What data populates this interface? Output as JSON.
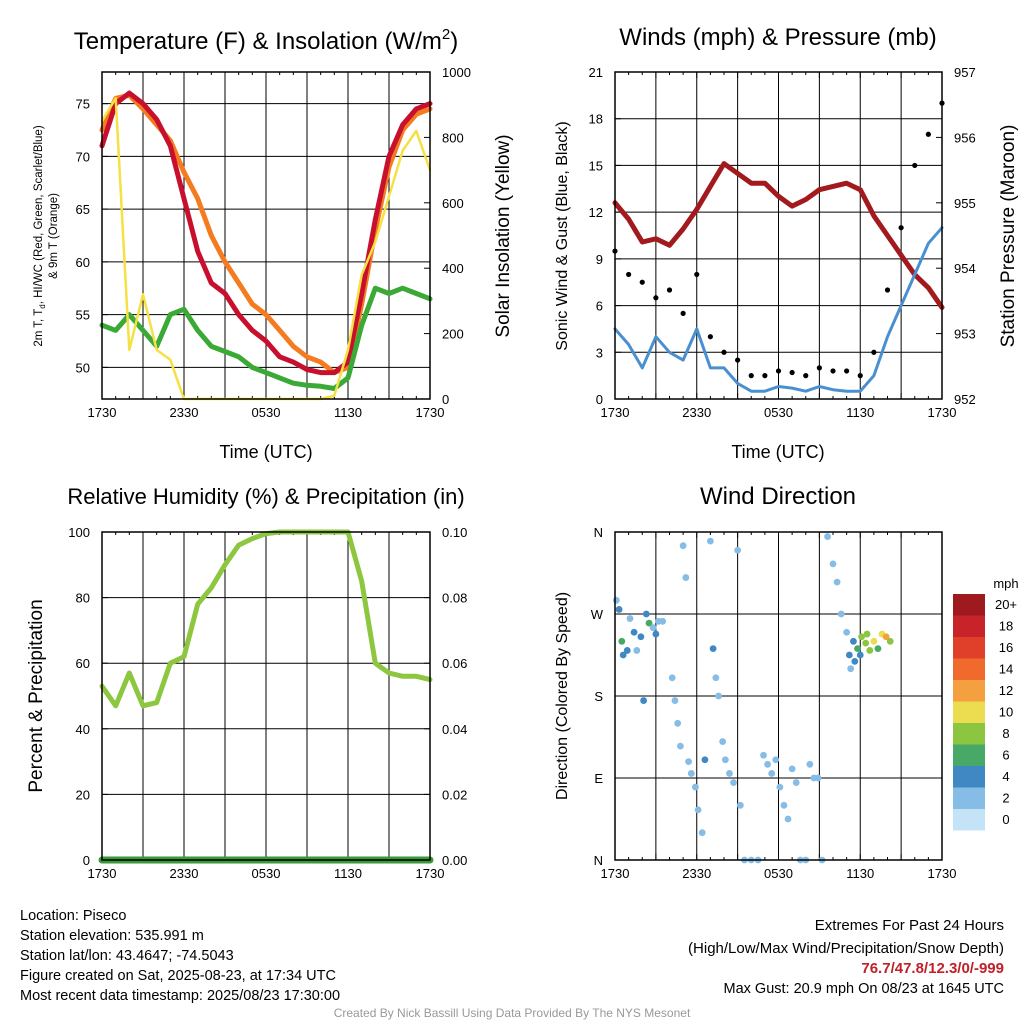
{
  "x_ticks": [
    "1730",
    "2330",
    "0530",
    "1130",
    "1730"
  ],
  "chart_data": [
    {
      "type": "line",
      "title": "Temperature (F) & Insolation (W/m2)",
      "title_main": "Temperature (F) & Insolation (W/m",
      "title_sup": "2",
      "title_close": ")",
      "xlabel": "Time (UTC)",
      "ylabel_left": "2m T, T, HI/WC (Red, Green, Scarlet/Blue)",
      "ylabel_left_prefix": "2m T, T",
      "ylabel_left_sub": "d",
      "ylabel_left_rest": ", HI/WC (Red, Green, Scarlet/Blue)",
      "ylabel_left_line2": "& 9m T (Orange)",
      "ylabel_right": "Solar Insolation (Yellow)",
      "ylim_left": [
        47,
        78
      ],
      "ylim_right": [
        0,
        1000
      ],
      "yticks_left": [
        50,
        55,
        60,
        65,
        70,
        75
      ],
      "yticks_right": [
        0,
        200,
        400,
        600,
        800,
        1000
      ],
      "x_hours": [
        0,
        1,
        2,
        3,
        4,
        5,
        6,
        7,
        8,
        9,
        10,
        11,
        12,
        13,
        14,
        15,
        16,
        17,
        18,
        19,
        20,
        21,
        22,
        23,
        24
      ],
      "series": [
        {
          "name": "9m T",
          "color": "#f47b20",
          "axis": "left",
          "width": 5,
          "values": [
            72.5,
            75.5,
            75.8,
            74.5,
            73,
            71.5,
            68.5,
            66,
            62.5,
            60,
            58,
            56,
            55,
            53.5,
            52,
            51,
            50.5,
            49.5,
            50,
            56,
            63,
            69,
            72.5,
            74,
            74.5
          ]
        },
        {
          "name": "2m T",
          "color": "#c8102e",
          "axis": "left",
          "width": 5,
          "values": [
            71,
            75,
            76,
            75,
            73.5,
            71,
            66,
            61,
            58,
            57,
            55,
            53.5,
            52.5,
            51,
            50.5,
            49.8,
            49.5,
            49.5,
            50.5,
            57,
            64,
            70,
            73,
            74.5,
            75
          ]
        },
        {
          "name": "Td",
          "color": "#3aa935",
          "axis": "left",
          "width": 5,
          "values": [
            54,
            53.5,
            55,
            53.5,
            52,
            55,
            55.5,
            53.5,
            52,
            51.5,
            51,
            50,
            49.5,
            49,
            48.5,
            48.3,
            48.2,
            48,
            49,
            54,
            57.5,
            57,
            57.5,
            57,
            56.5
          ]
        },
        {
          "name": "Solar Insolation",
          "color": "#f5e143",
          "axis": "right",
          "width": 2.5,
          "values": [
            850,
            920,
            150,
            320,
            150,
            120,
            0,
            0,
            0,
            0,
            0,
            0,
            0,
            0,
            0,
            0,
            0,
            10,
            150,
            380,
            480,
            620,
            760,
            820,
            700
          ]
        }
      ]
    },
    {
      "type": "line",
      "title": "Winds (mph) & Pressure (mb)",
      "xlabel": "Time (UTC)",
      "ylabel_left": "Sonic Wind & Gust (Blue, Black)",
      "ylabel_right": "Station Pressure (Maroon)",
      "ylim_left": [
        0,
        21
      ],
      "ylim_right": [
        952,
        957
      ],
      "yticks_left": [
        0,
        3,
        6,
        9,
        12,
        15,
        18,
        21
      ],
      "yticks_right": [
        952,
        953,
        954,
        955,
        956,
        957
      ],
      "x_hours": [
        0,
        1,
        2,
        3,
        4,
        5,
        6,
        7,
        8,
        9,
        10,
        11,
        12,
        13,
        14,
        15,
        16,
        17,
        18,
        19,
        20,
        21,
        22,
        23,
        24
      ],
      "series": [
        {
          "name": "Station Pressure",
          "color": "#a31a1e",
          "axis": "right",
          "width": 5,
          "values": [
            955.0,
            954.75,
            954.4,
            954.45,
            954.35,
            954.6,
            954.9,
            955.25,
            955.6,
            955.45,
            955.3,
            955.3,
            955.1,
            954.95,
            955.05,
            955.2,
            955.25,
            955.3,
            955.2,
            954.8,
            954.5,
            954.2,
            953.9,
            953.7,
            953.4
          ]
        },
        {
          "name": "Sonic Wind",
          "color": "#4a90d0",
          "axis": "left",
          "width": 3,
          "values": [
            4.5,
            3.5,
            2,
            4,
            3,
            2.5,
            4.5,
            2,
            2,
            1,
            0.5,
            0.5,
            0.8,
            0.7,
            0.5,
            0.8,
            0.6,
            0.5,
            0.5,
            1.5,
            4,
            6,
            8,
            10,
            11
          ]
        },
        {
          "name": "Gust",
          "color": "#000000",
          "axis": "left",
          "width": 0,
          "values": [
            9.5,
            8,
            7.5,
            6.5,
            7,
            5.5,
            8,
            4,
            3,
            2.5,
            1.5,
            1.5,
            1.8,
            1.7,
            1.5,
            2,
            1.8,
            1.8,
            1.5,
            3,
            7,
            11,
            15,
            17,
            19
          ]
        }
      ]
    },
    {
      "type": "line",
      "title": "Relative Humidity (%) & Precipitation (in)",
      "ylabel_left": "Percent & Precipitation",
      "ylim_left": [
        0,
        100
      ],
      "ylim_right": [
        0,
        0.1
      ],
      "yticks_left": [
        0,
        20,
        40,
        60,
        80,
        100
      ],
      "yticks_right": [
        "0.00",
        "0.02",
        "0.04",
        "0.06",
        "0.08",
        "0.10"
      ],
      "x_hours": [
        0,
        1,
        2,
        3,
        4,
        5,
        6,
        7,
        8,
        9,
        10,
        11,
        12,
        13,
        14,
        15,
        16,
        17,
        18,
        19,
        20,
        21,
        22,
        23,
        24
      ],
      "series": [
        {
          "name": "Relative Humidity",
          "color": "#8dc63f",
          "axis": "left",
          "width": 5,
          "values": [
            53,
            47,
            57,
            47,
            48,
            60,
            62,
            78,
            83,
            90,
            96,
            98,
            99.5,
            100,
            100,
            100,
            100,
            100,
            100,
            85,
            60,
            57,
            56,
            56,
            55
          ]
        },
        {
          "name": "Precipitation",
          "color": "#3a9a3a",
          "axis": "right",
          "width": 7,
          "values": [
            0,
            0,
            0,
            0,
            0,
            0,
            0,
            0,
            0,
            0,
            0,
            0,
            0,
            0,
            0,
            0,
            0,
            0,
            0,
            0,
            0,
            0,
            0,
            0,
            0
          ]
        }
      ]
    },
    {
      "type": "scatter",
      "title": "Wind Direction",
      "ylabel_left": "Direction (Colored By Speed)",
      "yticks_left": [
        "N",
        "E",
        "S",
        "W",
        "N"
      ],
      "ylim_left": [
        0,
        360
      ],
      "colorbar": {
        "title": "mph",
        "labels": [
          "20+",
          "18",
          "16",
          "14",
          "12",
          "10",
          "8",
          "6",
          "4",
          "2",
          "0"
        ],
        "colors": [
          "#9e1a1e",
          "#c8222a",
          "#e0402a",
          "#f06a2e",
          "#f5a040",
          "#ecdc50",
          "#8cc640",
          "#48a868",
          "#3f88c4",
          "#86bde6",
          "#c5e3f7"
        ]
      },
      "points": [
        [
          0.1,
          285,
          3
        ],
        [
          0.3,
          275,
          4
        ],
        [
          0.5,
          240,
          6
        ],
        [
          0.6,
          225,
          5
        ],
        [
          0.9,
          230,
          4
        ],
        [
          1.1,
          265,
          3
        ],
        [
          1.4,
          250,
          4
        ],
        [
          1.6,
          230,
          3
        ],
        [
          1.9,
          245,
          4
        ],
        [
          2.1,
          175,
          4
        ],
        [
          2.3,
          270,
          4
        ],
        [
          2.5,
          260,
          6
        ],
        [
          2.8,
          255,
          3
        ],
        [
          3.0,
          248,
          4
        ],
        [
          3.2,
          262,
          3
        ],
        [
          3.5,
          262,
          2
        ],
        [
          4.2,
          200,
          3
        ],
        [
          4.4,
          175,
          3
        ],
        [
          4.6,
          150,
          3
        ],
        [
          4.8,
          125,
          2
        ],
        [
          5.0,
          345,
          2
        ],
        [
          5.2,
          310,
          2
        ],
        [
          5.4,
          108,
          2
        ],
        [
          5.6,
          95,
          3
        ],
        [
          5.9,
          80,
          2
        ],
        [
          6.1,
          55,
          2
        ],
        [
          6.4,
          30,
          2
        ],
        [
          6.6,
          110,
          4
        ],
        [
          7.0,
          350,
          2
        ],
        [
          7.2,
          232,
          4
        ],
        [
          7.4,
          200,
          2
        ],
        [
          7.6,
          180,
          2
        ],
        [
          7.9,
          130,
          2
        ],
        [
          8.1,
          110,
          2
        ],
        [
          8.4,
          95,
          2
        ],
        [
          8.7,
          85,
          2
        ],
        [
          9.0,
          340,
          2
        ],
        [
          9.2,
          60,
          2
        ],
        [
          9.5,
          0,
          2
        ],
        [
          10.0,
          0,
          2
        ],
        [
          10.5,
          0,
          2
        ],
        [
          10.9,
          115,
          2
        ],
        [
          11.2,
          105,
          2
        ],
        [
          11.5,
          95,
          2
        ],
        [
          11.8,
          110,
          2
        ],
        [
          12.1,
          80,
          2
        ],
        [
          12.4,
          60,
          2
        ],
        [
          12.7,
          45,
          2
        ],
        [
          13.0,
          100,
          2
        ],
        [
          13.3,
          85,
          2
        ],
        [
          13.6,
          0,
          2
        ],
        [
          14.0,
          0,
          2
        ],
        [
          14.3,
          105,
          2
        ],
        [
          14.6,
          90,
          2
        ],
        [
          14.9,
          90,
          2
        ],
        [
          15.2,
          0,
          2
        ],
        [
          15.6,
          355,
          2
        ],
        [
          16.0,
          325,
          2
        ],
        [
          16.3,
          305,
          2
        ],
        [
          16.6,
          270,
          3
        ],
        [
          17.0,
          250,
          3
        ],
        [
          17.2,
          225,
          4
        ],
        [
          17.5,
          240,
          4
        ],
        [
          17.8,
          232,
          6
        ],
        [
          18.1,
          245,
          8
        ],
        [
          18.4,
          238,
          9
        ],
        [
          18.7,
          230,
          8
        ],
        [
          19.0,
          240,
          10
        ],
        [
          19.3,
          232,
          7
        ],
        [
          19.6,
          248,
          11
        ],
        [
          19.9,
          245,
          12
        ],
        [
          20.2,
          240,
          9
        ],
        [
          17.3,
          210,
          3
        ],
        [
          17.6,
          218,
          4
        ],
        [
          18.0,
          225,
          4
        ],
        [
          18.5,
          248,
          9
        ]
      ]
    }
  ],
  "info": {
    "location": "Location: Piseco",
    "elevation": "Station elevation: 535.991 m",
    "latlon": "Station lat/lon: 43.4647; -74.5043",
    "created": "Figure created on Sat, 2025-08-23, at 17:34 UTC",
    "recent": "Most recent data timestamp: 2025/08/23 17:30:00"
  },
  "extremes": {
    "heading": "Extremes For Past 24 Hours",
    "subheading": "(High/Low/Max Wind/Precipitation/Snow Depth)",
    "values": "76.7/47.8/12.3/0/-999",
    "max_gust": "Max Gust: 20.9 mph On 08/23 at 1645 UTC"
  },
  "credit": "Created By Nick Bassill Using Data Provided By The NYS Mesonet"
}
